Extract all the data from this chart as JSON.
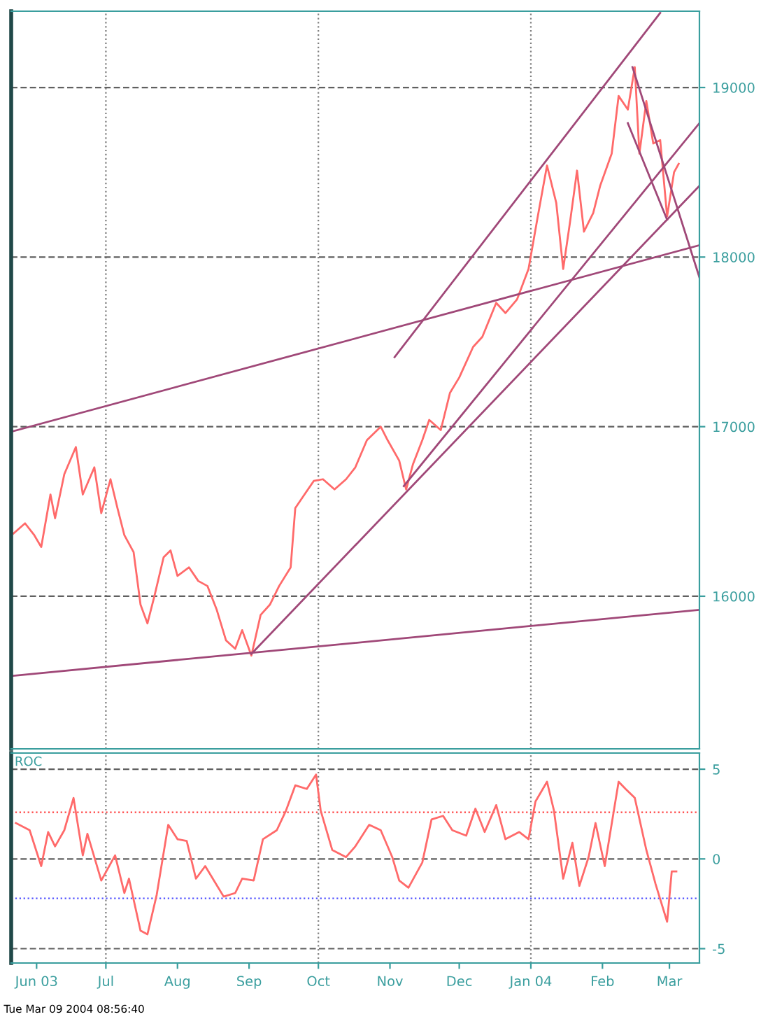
{
  "chart_data": [
    {
      "type": "line",
      "xlim": [
        "2003-05-21",
        "2004-03-14"
      ],
      "ylim": [
        15100,
        19450
      ],
      "yticks": [
        16000,
        17000,
        18000,
        19000
      ],
      "grid": "y",
      "tick_labels": "y",
      "ref_lines": [
        {
          "axis": "x",
          "value": "2003-07-01",
          "color": "#808080",
          "line_style": "dotted"
        },
        {
          "axis": "x",
          "value": "2003-10-01",
          "color": "#808080",
          "line_style": "dotted"
        },
        {
          "axis": "x",
          "value": "2004-01-01",
          "color": "#808080",
          "line_style": "dotted"
        }
      ],
      "series": [
        {
          "color": "#ff6a6a",
          "x": [
            "2003-05-22",
            "2003-05-27",
            "2003-05-31",
            "2003-06-03",
            "2003-06-07",
            "2003-06-09",
            "2003-06-13",
            "2003-06-18",
            "2003-06-21",
            "2003-06-26",
            "2003-06-29",
            "2003-07-03",
            "2003-07-06",
            "2003-07-09",
            "2003-07-13",
            "2003-07-16",
            "2003-07-19",
            "2003-07-22",
            "2003-07-26",
            "2003-07-29",
            "2003-08-01",
            "2003-08-06",
            "2003-08-10",
            "2003-08-14",
            "2003-08-18",
            "2003-08-22",
            "2003-08-26",
            "2003-08-29",
            "2003-09-02",
            "2003-09-06",
            "2003-09-10",
            "2003-09-14",
            "2003-09-19",
            "2003-09-21",
            "2003-09-25",
            "2003-09-29",
            "2003-10-03",
            "2003-10-08",
            "2003-10-13",
            "2003-10-17",
            "2003-10-22",
            "2003-10-28",
            "2003-10-31",
            "2003-11-05",
            "2003-11-08",
            "2003-11-11",
            "2003-11-15",
            "2003-11-18",
            "2003-11-23",
            "2003-11-27",
            "2003-12-01",
            "2003-12-07",
            "2003-12-11",
            "2003-12-17",
            "2003-12-21",
            "2003-12-26",
            "2003-12-31",
            "2004-01-04",
            "2004-01-08",
            "2004-01-12",
            "2004-01-15",
            "2004-01-18",
            "2004-01-21",
            "2004-01-24",
            "2004-01-28",
            "2004-01-31",
            "2004-02-05",
            "2004-02-08",
            "2004-02-12",
            "2004-02-15",
            "2004-02-17",
            "2004-02-20",
            "2004-02-23",
            "2004-02-26",
            "2004-02-29",
            "2004-03-03",
            "2004-03-05"
          ],
          "values": [
            16370,
            16430,
            16360,
            16290,
            16600,
            16460,
            16720,
            16880,
            16600,
            16760,
            16490,
            16690,
            16520,
            16360,
            16260,
            15950,
            15840,
            16000,
            16230,
            16270,
            16120,
            16170,
            16090,
            16060,
            15920,
            15740,
            15690,
            15800,
            15650,
            15890,
            15950,
            16060,
            16170,
            16520,
            16600,
            16680,
            16690,
            16630,
            16690,
            16760,
            16920,
            17000,
            16920,
            16800,
            16630,
            16780,
            16920,
            17040,
            16980,
            17200,
            17290,
            17470,
            17530,
            17730,
            17670,
            17750,
            17930,
            18240,
            18540,
            18320,
            17930,
            18210,
            18510,
            18150,
            18260,
            18420,
            18610,
            18950,
            18870,
            19120,
            18610,
            18920,
            18670,
            18690,
            18240,
            18500,
            18550
          ]
        },
        {
          "type": "line",
          "color": "#a04878",
          "x": [
            "2003-05-21",
            "2004-03-14"
          ],
          "values": [
            16970,
            18070
          ]
        },
        {
          "type": "line",
          "color": "#a04878",
          "x": [
            "2003-05-21",
            "2004-03-14"
          ],
          "values": [
            15530,
            15920
          ]
        },
        {
          "type": "line",
          "color": "#a04878",
          "x": [
            "2003-09-02",
            "2004-03-14"
          ],
          "values": [
            15660,
            18420
          ]
        },
        {
          "type": "line",
          "color": "#a04878",
          "x": [
            "2003-11-07",
            "2004-03-14"
          ],
          "values": [
            16650,
            18790
          ]
        },
        {
          "type": "line",
          "color": "#a04878",
          "x": [
            "2003-11-03",
            "2004-02-26"
          ],
          "values": [
            17410,
            19440
          ]
        },
        {
          "type": "line",
          "color": "#a04878",
          "x": [
            "2004-02-14",
            "2004-03-14"
          ],
          "values": [
            19120,
            17880
          ]
        },
        {
          "type": "line",
          "color": "#a04878",
          "x": [
            "2004-02-12",
            "2004-02-29"
          ],
          "values": [
            18790,
            18220
          ]
        }
      ]
    },
    {
      "type": "line",
      "title": "ROC",
      "xlim": [
        "2003-05-21",
        "2004-03-14"
      ],
      "ylim": [
        -5.8,
        5.9
      ],
      "yticks": [
        -5,
        0,
        5
      ],
      "grid": "y",
      "xticks": [
        {
          "value": "2003-06-01",
          "label": "Jun 03"
        },
        {
          "value": "2003-07-01",
          "label": "Jul"
        },
        {
          "value": "2003-08-01",
          "label": "Aug"
        },
        {
          "value": "2003-09-01",
          "label": "Sep"
        },
        {
          "value": "2003-10-01",
          "label": "Oct"
        },
        {
          "value": "2003-11-01",
          "label": "Nov"
        },
        {
          "value": "2003-12-01",
          "label": "Dec"
        },
        {
          "value": "2004-01-01",
          "label": "Jan 04"
        },
        {
          "value": "2004-02-01",
          "label": "Feb"
        },
        {
          "value": "2004-03-01",
          "label": "Mar"
        }
      ],
      "ref_lines": [
        {
          "axis": "y",
          "value": 2.6,
          "color": "#ff4040",
          "line_style": "dotted"
        },
        {
          "axis": "y",
          "value": -2.2,
          "color": "#5050ff",
          "line_style": "dotted"
        },
        {
          "axis": "x",
          "value": "2003-07-01",
          "color": "#808080",
          "line_style": "dotted"
        },
        {
          "axis": "x",
          "value": "2003-10-01",
          "color": "#808080",
          "line_style": "dotted"
        },
        {
          "axis": "x",
          "value": "2004-01-01",
          "color": "#808080",
          "line_style": "dotted"
        }
      ],
      "annotations": [
        "Tue Mar 09 2004 08:56:40"
      ],
      "series": [
        {
          "color": "#ff6a6a",
          "x": [
            "2003-05-23",
            "2003-05-29",
            "2003-06-03",
            "2003-06-06",
            "2003-06-09",
            "2003-06-13",
            "2003-06-17",
            "2003-06-21",
            "2003-06-23",
            "2003-06-29",
            "2003-07-05",
            "2003-07-09",
            "2003-07-11",
            "2003-07-16",
            "2003-07-19",
            "2003-07-23",
            "2003-07-28",
            "2003-08-01",
            "2003-08-05",
            "2003-08-09",
            "2003-08-13",
            "2003-08-21",
            "2003-08-26",
            "2003-08-29",
            "2003-09-03",
            "2003-09-07",
            "2003-09-13",
            "2003-09-17",
            "2003-09-21",
            "2003-09-26",
            "2003-09-30",
            "2003-10-02",
            "2003-10-07",
            "2003-10-13",
            "2003-10-17",
            "2003-10-23",
            "2003-10-28",
            "2003-11-02",
            "2003-11-05",
            "2003-11-09",
            "2003-11-15",
            "2003-11-19",
            "2003-11-24",
            "2003-11-28",
            "2003-12-04",
            "2003-12-08",
            "2003-12-12",
            "2003-12-17",
            "2003-12-21",
            "2003-12-27",
            "2003-12-31",
            "2004-01-03",
            "2004-01-08",
            "2004-01-11",
            "2004-01-15",
            "2004-01-19",
            "2004-01-22",
            "2004-01-26",
            "2004-01-29",
            "2004-02-02",
            "2004-02-08",
            "2004-02-11",
            "2004-02-15",
            "2004-02-20",
            "2004-02-24",
            "2004-02-29",
            "2004-03-02",
            "2004-03-04"
          ],
          "values": [
            2.0,
            1.6,
            -0.4,
            1.5,
            0.7,
            1.6,
            3.4,
            0.2,
            1.4,
            -1.2,
            0.2,
            -1.9,
            -1.1,
            -4.0,
            -4.2,
            -2.0,
            1.9,
            1.1,
            1.0,
            -1.1,
            -0.4,
            -2.1,
            -1.9,
            -1.1,
            -1.2,
            1.1,
            1.6,
            2.7,
            4.1,
            3.9,
            4.7,
            2.7,
            0.5,
            0.1,
            0.7,
            1.9,
            1.6,
            0.1,
            -1.2,
            -1.6,
            -0.2,
            2.2,
            2.4,
            1.6,
            1.3,
            2.8,
            1.5,
            3.0,
            1.1,
            1.5,
            1.1,
            3.2,
            4.3,
            2.7,
            -1.1,
            0.9,
            -1.5,
            0.1,
            2.0,
            -0.4,
            4.3,
            3.9,
            3.4,
            0.5,
            -1.4,
            -3.5,
            -0.7,
            -0.7
          ]
        }
      ]
    }
  ]
}
